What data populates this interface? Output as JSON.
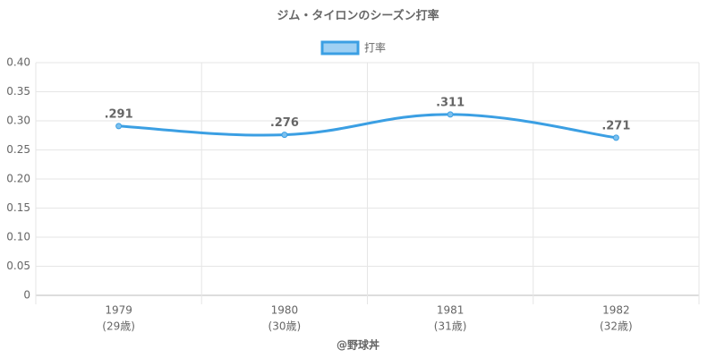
{
  "chart_data": {
    "type": "line",
    "title": "ジム・タイロンのシーズン打率",
    "categories": [
      "1979",
      "1980",
      "1981",
      "1982"
    ],
    "category_sublabels": [
      "(29歳)",
      "(30歳)",
      "(31歳)",
      "(32歳)"
    ],
    "series": [
      {
        "name": "打率",
        "color": "#3b9fe3",
        "values": [
          0.291,
          0.276,
          0.311,
          0.271
        ],
        "value_labels": [
          ".291",
          ".276",
          ".311",
          ".271"
        ]
      }
    ],
    "ylim": [
      0,
      0.4
    ],
    "yticks": [
      0,
      0.05,
      {
        "value": 0.1,
        "label": "0.10"
      },
      0.15,
      {
        "value": 0.2,
        "label": "0.20"
      },
      0.25,
      {
        "value": 0.3,
        "label": "0.30"
      },
      0.35,
      {
        "value": 0.4,
        "label": "0.40"
      }
    ],
    "grid": true,
    "legend": "top",
    "credit": "@野球丼"
  }
}
